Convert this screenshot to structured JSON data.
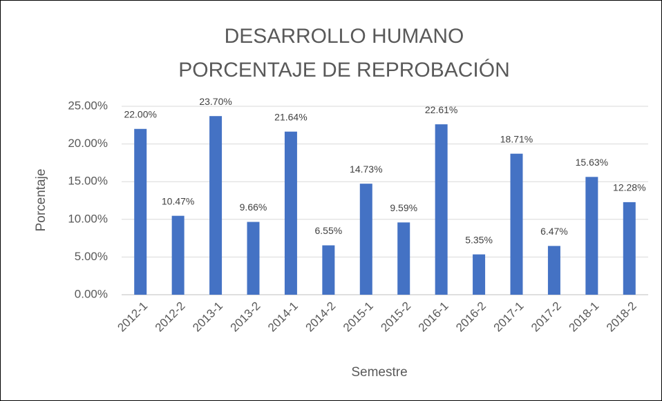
{
  "chart_data": {
    "type": "bar",
    "title": [
      "DESARROLLO HUMANO",
      "PORCENTAJE DE REPROBACIÓN"
    ],
    "x_label": "Semestre",
    "y_label": "Porcentaje",
    "categories": [
      "2012-1",
      "2012-2",
      "2013-1",
      "2013-2",
      "2014-1",
      "2014-2",
      "2015-1",
      "2015-2",
      "2016-1",
      "2016-2",
      "2017-1",
      "2017-2",
      "2018-1",
      "2018-2"
    ],
    "values": [
      22.0,
      10.47,
      23.7,
      9.66,
      21.64,
      6.55,
      14.73,
      9.59,
      22.61,
      5.35,
      18.71,
      6.47,
      15.63,
      12.28
    ],
    "value_labels": [
      "22.00%",
      "10.47%",
      "23.70%",
      "9.66%",
      "21.64%",
      "6.55%",
      "14.73%",
      "9.59%",
      "22.61%",
      "5.35%",
      "18.71%",
      "6.47%",
      "15.63%",
      "12.28%"
    ],
    "color": "#4472c4",
    "ylim": [
      0,
      25
    ],
    "yticks": [
      {
        "value": 0,
        "label": "0.00%"
      },
      {
        "value": 5,
        "label": "5.00%"
      },
      {
        "value": 10,
        "label": "10.00%"
      },
      {
        "value": 15,
        "label": "15.00%"
      },
      {
        "value": 20,
        "label": "20.00%"
      },
      {
        "value": 25,
        "label": "25.00%"
      }
    ],
    "grid": true
  }
}
